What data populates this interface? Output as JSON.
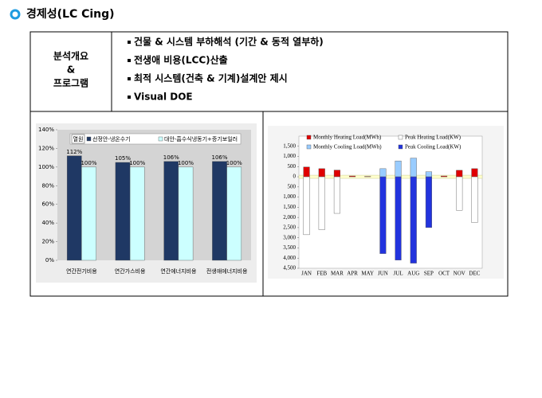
{
  "header": {
    "title": "경제성(LC Cing)"
  },
  "table": {
    "label": [
      "분석개요",
      "&",
      "프로그램"
    ],
    "items": [
      "건물 & 시스템 부하해석 (기간 & 동적 열부하)",
      "전생애 비용(LCC)산출",
      "최적 시스템(건축 & 기계)설계안 제시",
      "Visual DOE"
    ]
  },
  "chart_data": [
    {
      "type": "bar",
      "legend_title": "열원",
      "categories": [
        "연간전기비용",
        "연간가스비용",
        "연간에너지비용",
        "전생애에너지비용"
      ],
      "series": [
        {
          "name": "선정안-냉온수기",
          "color": "#1f3864",
          "values": [
            112,
            105,
            106,
            106
          ],
          "value_labels": [
            "112%",
            "105%",
            "106%",
            "106%"
          ]
        },
        {
          "name": "대안-흡수식냉동기+증기보일러",
          "color": "#ccffff",
          "values": [
            100,
            100,
            100,
            100
          ],
          "value_labels": [
            "100%",
            "100%",
            "100%",
            "100%"
          ]
        }
      ],
      "ylim": [
        0,
        140
      ],
      "yticks": [
        {
          "value": 0,
          "label": "0%"
        },
        {
          "value": 20,
          "label": "20%"
        },
        {
          "value": 40,
          "label": "40%"
        },
        {
          "value": 60,
          "label": "60%"
        },
        {
          "value": 80,
          "label": "80%"
        },
        {
          "value": 100,
          "label": "100%"
        },
        {
          "value": 120,
          "label": "120%"
        },
        {
          "value": 140,
          "label": "140%"
        }
      ],
      "grid": false
    },
    {
      "type": "bar",
      "categories": [
        "JAN",
        "FEB",
        "MAR",
        "APR",
        "MAY",
        "JUN",
        "JUL",
        "AUG",
        "SEP",
        "OCT",
        "NOV",
        "DEC"
      ],
      "series": [
        {
          "name": "Monthly Heating Load(MWh)",
          "color": "#e00000",
          "values": [
            480,
            400,
            330,
            40,
            20,
            0,
            0,
            0,
            0,
            40,
            320,
            400
          ]
        },
        {
          "name": "Peak Heating Load(KW)",
          "color": "#ffffff",
          "values": [
            -2850,
            -2600,
            -1800,
            0,
            0,
            0,
            0,
            0,
            0,
            0,
            -1650,
            -2250
          ]
        },
        {
          "name": "Monthly Cooling Load(MWh)",
          "color": "#99ccff",
          "values": [
            0,
            0,
            0,
            0,
            0,
            400,
            780,
            920,
            250,
            0,
            0,
            0
          ]
        },
        {
          "name": "Peak Cooling Load(KW)",
          "color": "#2233dd",
          "values": [
            0,
            0,
            0,
            0,
            0,
            -3780,
            -4100,
            -4250,
            -2500,
            0,
            0,
            0
          ]
        }
      ],
      "ylim": [
        -4500,
        2000
      ],
      "yticks": [
        {
          "value": 1500,
          "label": "1,500"
        },
        {
          "value": 1000,
          "label": "1,000"
        },
        500,
        0,
        {
          "value": -500,
          "label": "500"
        },
        {
          "value": -1000,
          "label": "1,000"
        },
        {
          "value": -1500,
          "label": "1,500"
        },
        {
          "value": -2000,
          "label": "2,000"
        },
        {
          "value": -2500,
          "label": "2,500"
        },
        {
          "value": -3000,
          "label": "3,000"
        },
        {
          "value": -3500,
          "label": "3,500"
        },
        {
          "value": -4000,
          "label": "4,000"
        },
        {
          "value": -4500,
          "label": "4,500"
        }
      ],
      "grid": false
    }
  ]
}
